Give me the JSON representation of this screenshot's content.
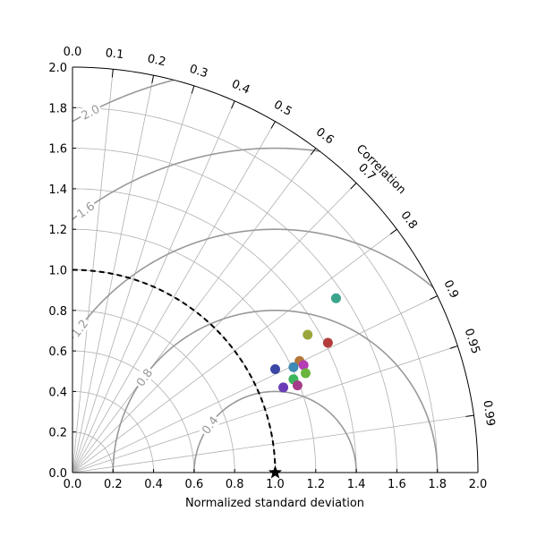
{
  "chart_data": {
    "type": "scatter",
    "subtype": "taylor-diagram",
    "xlabel": "Normalized standard deviation",
    "correlation_label": "Correlation",
    "std_range": [
      0,
      2.0
    ],
    "std_ticks": [
      "0.0",
      "0.2",
      "0.4",
      "0.6",
      "0.8",
      "1.0",
      "1.2",
      "1.4",
      "1.6",
      "1.8",
      "2.0"
    ],
    "correlation_ticks": [
      0.0,
      0.1,
      0.2,
      0.3,
      0.4,
      0.5,
      0.6,
      0.7,
      0.8,
      0.9,
      0.95,
      0.99
    ],
    "correlation_tick_labels": [
      "0.0",
      "0.1",
      "0.2",
      "0.3",
      "0.4",
      "0.5",
      "0.6",
      "0.7",
      "0.8",
      "0.9",
      "0.95",
      "0.99"
    ],
    "std_grid_values": [
      0.2,
      0.4,
      0.6,
      0.8,
      1.0,
      1.2,
      1.4,
      1.6,
      1.8
    ],
    "rms_contours": [
      {
        "value": 0.4,
        "label": "0.4"
      },
      {
        "value": 0.8,
        "label": "0.8"
      },
      {
        "value": 1.2,
        "label": "1.2"
      },
      {
        "value": 1.6,
        "label": "1.6"
      },
      {
        "value": 2.0,
        "label": "2.0"
      }
    ],
    "reference": {
      "std": 1.0,
      "marker": "star",
      "color": "#000000"
    },
    "reference_std_arc": {
      "style": "dashed",
      "color": "#000000"
    },
    "grid": true,
    "points": [
      {
        "x": 1.3,
        "y": 0.86,
        "color": "#3aa58a"
      },
      {
        "x": 1.16,
        "y": 0.68,
        "color": "#9aa63a"
      },
      {
        "x": 1.26,
        "y": 0.64,
        "color": "#b53c3c"
      },
      {
        "x": 1.12,
        "y": 0.55,
        "color": "#b5763a"
      },
      {
        "x": 1.14,
        "y": 0.53,
        "color": "#b53cb5"
      },
      {
        "x": 1.09,
        "y": 0.52,
        "color": "#3c8ab5"
      },
      {
        "x": 1.0,
        "y": 0.51,
        "color": "#3c46a5"
      },
      {
        "x": 1.15,
        "y": 0.49,
        "color": "#6ab53c"
      },
      {
        "x": 1.09,
        "y": 0.46,
        "color": "#3cb55a"
      },
      {
        "x": 1.04,
        "y": 0.42,
        "color": "#6a3cb5"
      },
      {
        "x": 1.11,
        "y": 0.43,
        "color": "#a53c8a"
      }
    ]
  }
}
